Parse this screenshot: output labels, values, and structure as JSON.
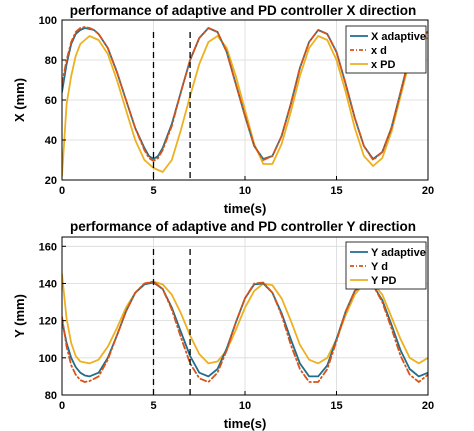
{
  "colors": {
    "adaptive": "#1f6e8c",
    "desired": "#d95319",
    "pd": "#edb120",
    "event_line": "#000000",
    "grid": "#d9d9d9",
    "frame": "#000000"
  },
  "chart_data": [
    {
      "type": "line",
      "title": "performance of adaptive and PD controller X direction",
      "xlabel": "time(s)",
      "ylabel": "X (mm)",
      "xlim": [
        0,
        20
      ],
      "ylim": [
        20,
        100
      ],
      "xticks": [
        0,
        5,
        10,
        15,
        20
      ],
      "yticks": [
        20,
        40,
        60,
        80,
        100
      ],
      "grid": true,
      "legend_position": "top-right",
      "event_lines_x": [
        5,
        7
      ],
      "series": [
        {
          "name": "X adaptive",
          "role": "adaptive",
          "style": "solid",
          "x": [
            0,
            0.25,
            0.5,
            0.75,
            1,
            1.25,
            1.5,
            1.75,
            2,
            2.5,
            3,
            3.5,
            4,
            4.5,
            4.75,
            5,
            5.25,
            5.5,
            6,
            6.5,
            7,
            7.5,
            8,
            8.5,
            9,
            9.5,
            10,
            10.5,
            11,
            11.5,
            12,
            12.5,
            13,
            13.5,
            14,
            14.5,
            15,
            15.5,
            16,
            16.5,
            17,
            17.5,
            18,
            18.5,
            19,
            19.5,
            20
          ],
          "y": [
            64,
            78,
            88,
            93,
            95,
            96,
            95.5,
            95,
            93,
            86,
            74,
            60,
            46,
            36,
            32,
            30.5,
            32,
            36,
            48,
            64,
            80,
            91,
            96,
            94,
            84,
            68,
            52,
            37,
            30.5,
            32,
            42,
            58,
            76,
            89,
            95,
            93,
            84,
            68,
            51,
            37,
            30.5,
            34,
            46,
            64,
            82,
            92,
            94
          ]
        },
        {
          "name": "x d",
          "role": "desired",
          "style": "dashdot",
          "x": [
            0,
            0.25,
            0.5,
            0.75,
            1,
            1.25,
            1.5,
            1.75,
            2,
            2.5,
            3,
            3.5,
            4,
            4.5,
            4.75,
            5,
            5.25,
            5.5,
            6,
            6.5,
            7,
            7.5,
            8,
            8.5,
            9,
            9.5,
            10,
            10.5,
            11,
            11.5,
            12,
            12.5,
            13,
            13.5,
            14,
            14.5,
            15,
            15.5,
            16,
            16.5,
            17,
            17.5,
            18,
            18.5,
            19,
            19.5,
            20
          ],
          "y": [
            68,
            80,
            89,
            94,
            96,
            96.5,
            96,
            95,
            93,
            86,
            74,
            60,
            46,
            35,
            31,
            29.5,
            31,
            35,
            47,
            64,
            80,
            91,
            96,
            94,
            84,
            68,
            52,
            37,
            30,
            32,
            42,
            58,
            76,
            89,
            95,
            93,
            84,
            68,
            51,
            37,
            30,
            34,
            46,
            64,
            82,
            92,
            94
          ]
        },
        {
          "name": "x PD",
          "role": "pd",
          "style": "solid",
          "x": [
            0,
            0.25,
            0.5,
            0.75,
            1,
            1.5,
            2,
            2.5,
            3,
            3.5,
            4,
            4.5,
            5,
            5.5,
            6,
            6.5,
            7,
            7.5,
            8,
            8.5,
            9,
            9.5,
            10,
            10.5,
            11,
            11.5,
            12,
            12.5,
            13,
            13.5,
            14,
            14.5,
            15,
            15.5,
            16,
            16.5,
            17,
            17.5,
            18,
            18.5,
            19,
            19.5,
            20
          ],
          "y": [
            22,
            58,
            72,
            82,
            88,
            92,
            90,
            83,
            70,
            55,
            40,
            30,
            26,
            24,
            30,
            45,
            62,
            78,
            89,
            92,
            86,
            72,
            55,
            38,
            28,
            28,
            38,
            54,
            72,
            86,
            92,
            90,
            80,
            64,
            46,
            32,
            27,
            31,
            44,
            62,
            80,
            90,
            91
          ]
        }
      ]
    },
    {
      "type": "line",
      "title": "performance of adaptive and PD controller Y direction",
      "xlabel": "time(s)",
      "ylabel": "Y (mm)",
      "xlim": [
        0,
        20
      ],
      "ylim": [
        80,
        165
      ],
      "xticks": [
        0,
        5,
        10,
        15,
        20
      ],
      "yticks": [
        80,
        100,
        120,
        140,
        160
      ],
      "grid": true,
      "legend_position": "top-right",
      "event_lines_x": [
        5,
        7
      ],
      "series": [
        {
          "name": "Y adaptive",
          "role": "adaptive",
          "style": "solid",
          "x": [
            0,
            0.25,
            0.5,
            0.75,
            1,
            1.25,
            1.5,
            2,
            2.5,
            3,
            3.5,
            4,
            4.5,
            5,
            5.5,
            6,
            6.5,
            7,
            7.5,
            8,
            8.5,
            9,
            9.5,
            10,
            10.5,
            11,
            11.5,
            12,
            12.5,
            13,
            13.5,
            14,
            14.5,
            15,
            15.5,
            16,
            16.5,
            17,
            17.5,
            18,
            18.5,
            19,
            19.5,
            20
          ],
          "y": [
            120,
            108,
            100,
            95,
            92,
            90.5,
            90,
            92,
            100,
            112,
            125,
            135,
            139.5,
            140.5,
            137,
            127,
            114,
            101,
            92,
            90,
            94,
            105,
            119,
            132,
            139.5,
            140,
            135,
            124,
            110,
            97,
            90,
            90,
            96,
            110,
            125,
            136,
            140,
            139,
            131,
            118,
            104,
            94,
            90,
            92
          ]
        },
        {
          "name": "Y d",
          "role": "desired",
          "style": "dashdot",
          "x": [
            0,
            0.25,
            0.5,
            0.75,
            1,
            1.25,
            1.5,
            2,
            2.5,
            3,
            3.5,
            4,
            4.5,
            5,
            5.5,
            6,
            6.5,
            7,
            7.5,
            8,
            8.5,
            9,
            9.5,
            10,
            10.5,
            11,
            11.5,
            12,
            12.5,
            13,
            13.5,
            14,
            14.5,
            15,
            15.5,
            16,
            16.5,
            17,
            17.5,
            18,
            18.5,
            19,
            19.5,
            20
          ],
          "y": [
            122,
            106,
            96,
            91,
            88,
            87,
            87.5,
            90,
            99,
            112,
            125,
            135,
            140,
            141,
            137,
            126,
            111,
            97,
            89,
            87,
            92,
            104,
            119,
            132,
            140,
            140.5,
            135,
            123,
            107,
            94,
            87,
            87,
            94,
            109,
            125,
            136,
            140.5,
            139,
            130,
            116,
            101,
            91,
            87,
            91
          ]
        },
        {
          "name": "Y PD",
          "role": "pd",
          "style": "solid",
          "x": [
            0,
            0.25,
            0.5,
            0.75,
            1,
            1.5,
            2,
            2.5,
            3,
            3.5,
            4,
            4.5,
            5,
            5.5,
            6,
            6.5,
            7,
            7.5,
            8,
            8.5,
            9,
            9.5,
            10,
            10.5,
            11,
            11.5,
            12,
            12.5,
            13,
            13.5,
            14,
            14.5,
            15,
            15.5,
            16,
            16.5,
            17,
            17.5,
            18,
            18.5,
            19,
            19.5,
            20
          ],
          "y": [
            145,
            121,
            108,
            101,
            98,
            97,
            99,
            106,
            116,
            127,
            135,
            140,
            141,
            139.5,
            134,
            124,
            112,
            102,
            97,
            98,
            104,
            115,
            127,
            136,
            140,
            139,
            132,
            120,
            107,
            99,
            97,
            100,
            110,
            123,
            134,
            140,
            140,
            134,
            122,
            110,
            100,
            97,
            100
          ]
        }
      ]
    }
  ]
}
